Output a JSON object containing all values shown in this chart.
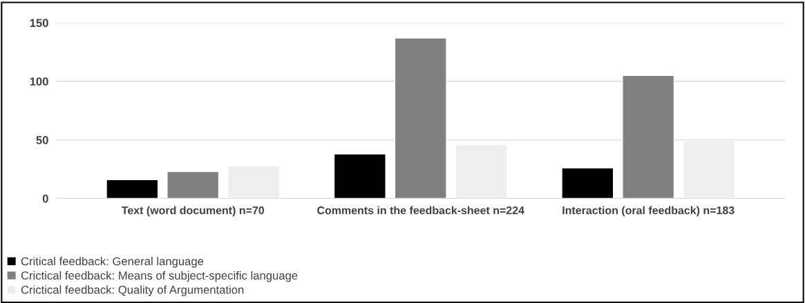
{
  "chart_data": {
    "type": "bar",
    "categories": [
      "Text (word document) n=70",
      "Comments in the feedback-sheet n=224",
      "Interaction (oral feedback) n=183"
    ],
    "series": [
      {
        "name": "Critical feedback: General language",
        "color": "#000000",
        "values": [
          16,
          38,
          26
        ]
      },
      {
        "name": "Crictical feedback: Means of subject-specific language",
        "color": "#808080",
        "values": [
          23,
          137,
          105
        ]
      },
      {
        "name": "Crictical feedback: Quality of Argumentation",
        "color": "#eeeeee",
        "values": [
          28,
          46,
          49
        ]
      }
    ],
    "ylim": [
      0,
      150
    ],
    "yticks": [
      0,
      50,
      100,
      150
    ],
    "grid": "y",
    "legend": "bottom left"
  }
}
